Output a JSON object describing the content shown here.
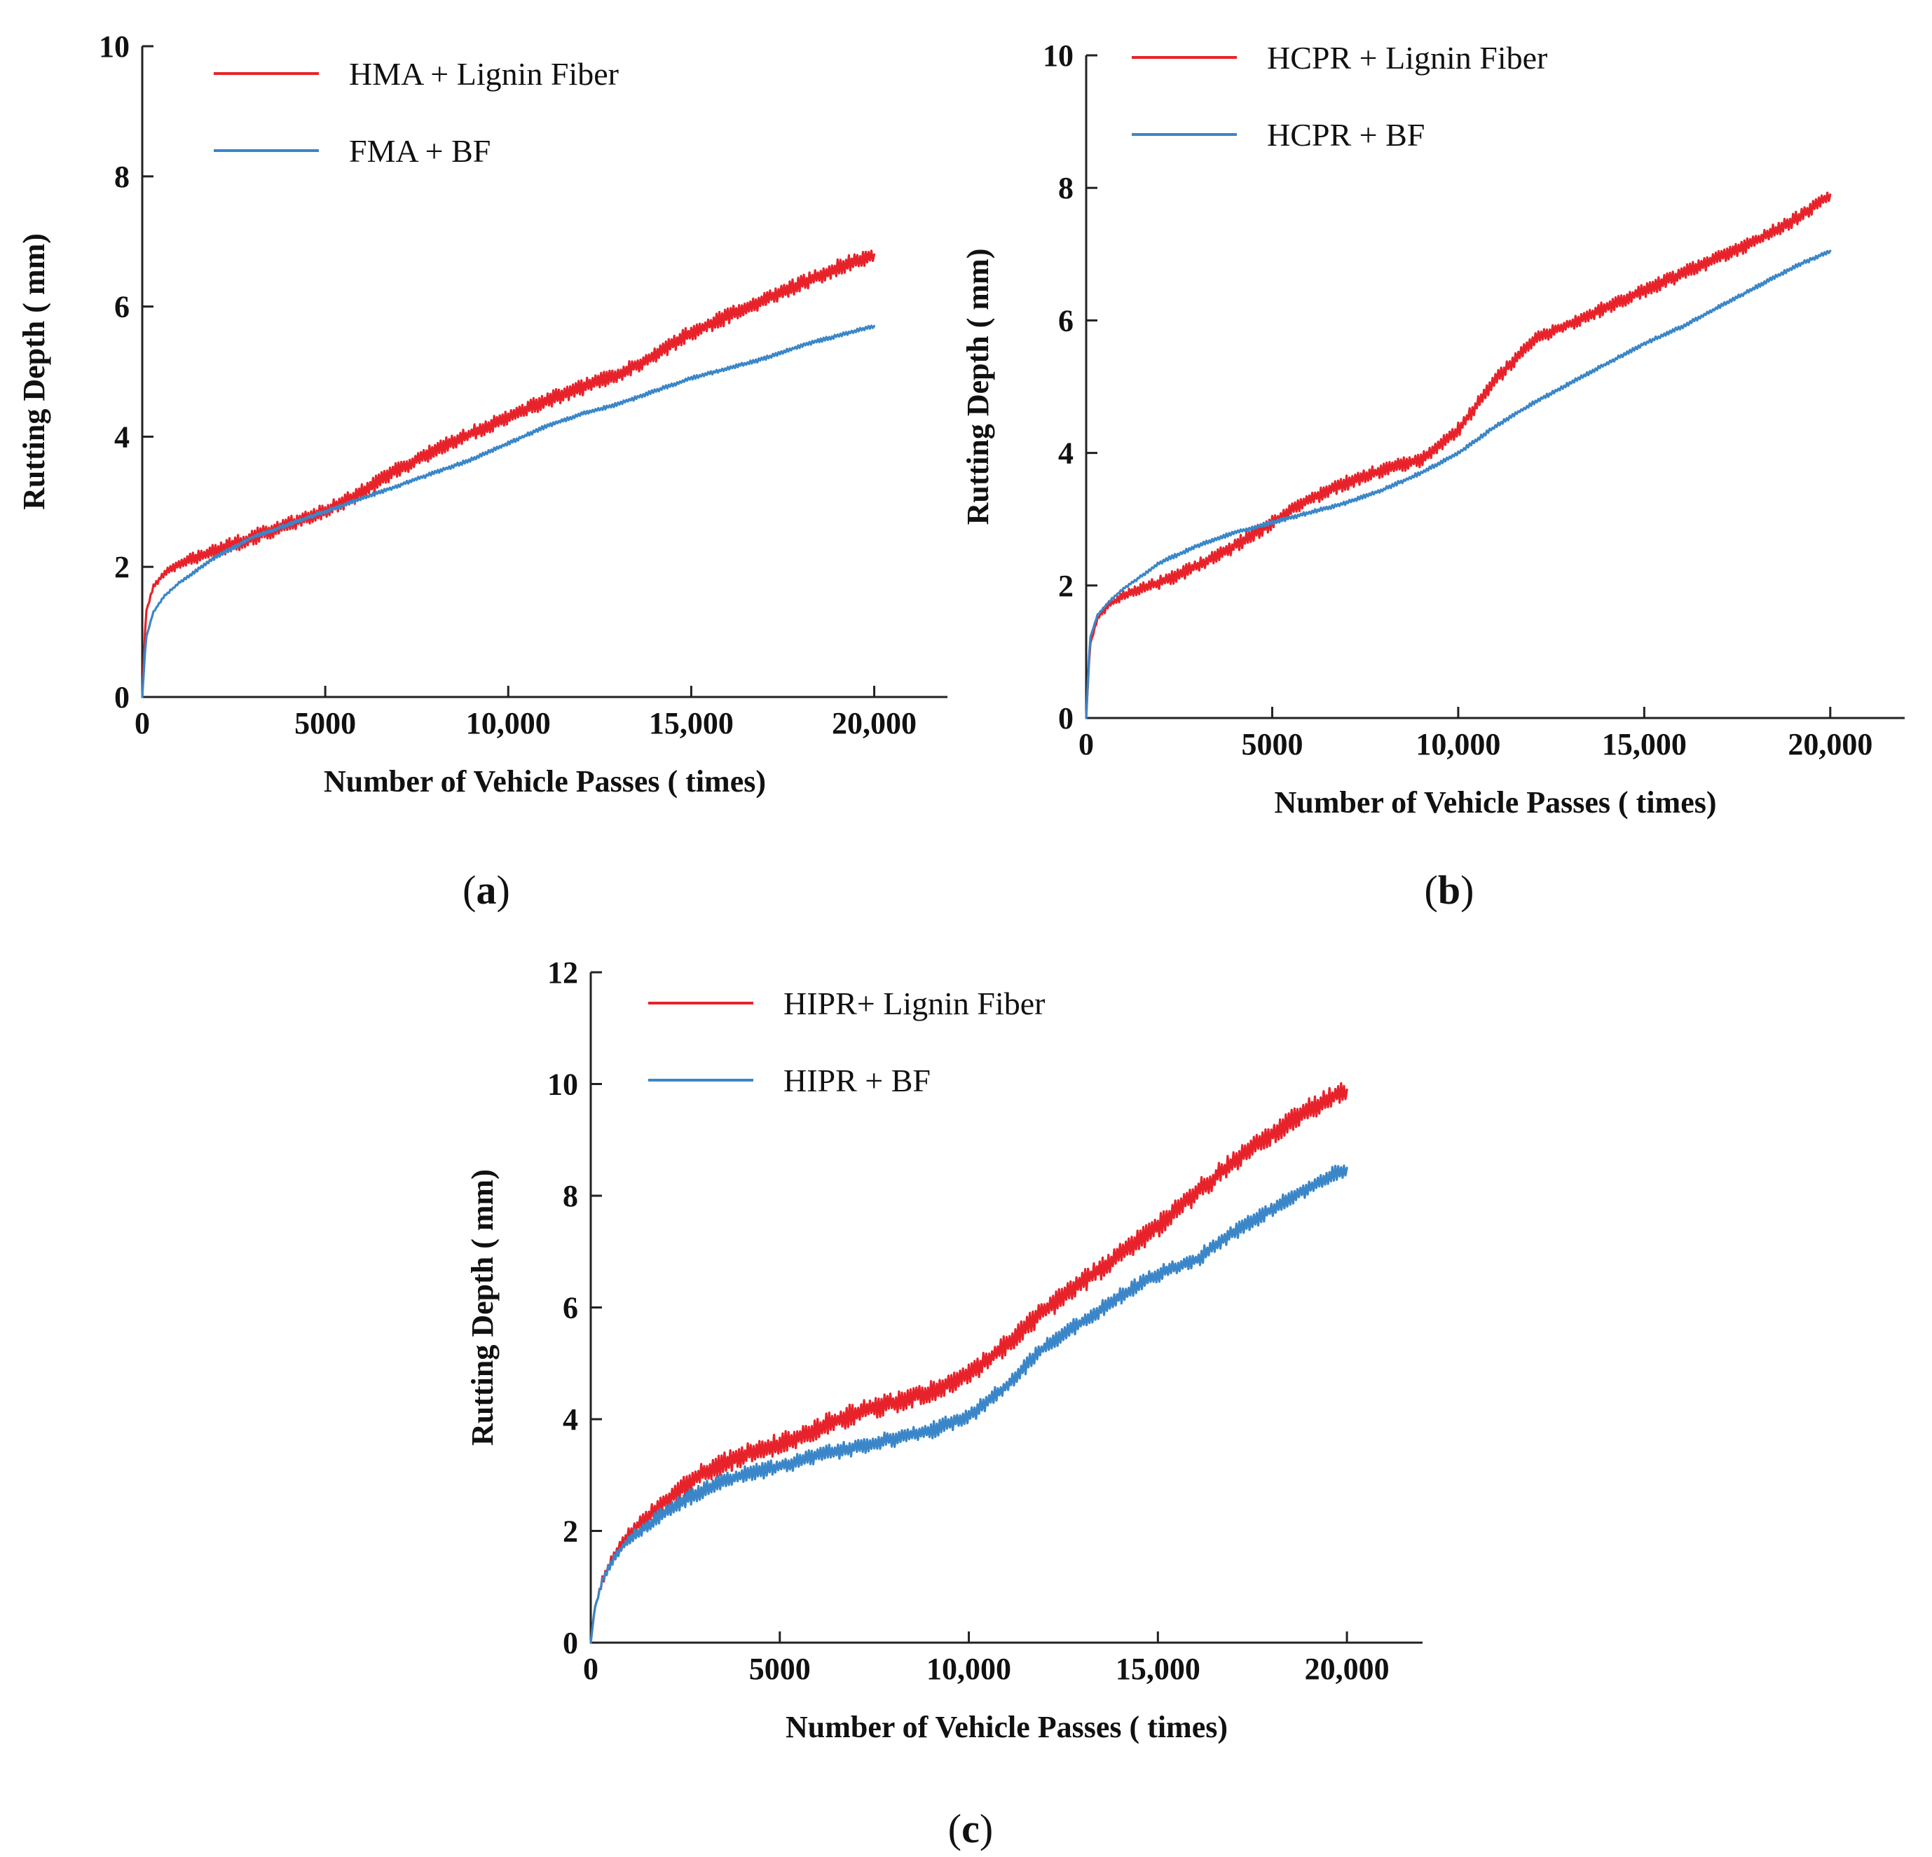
{
  "chart_data": [
    {
      "type": "line",
      "panel": "(a)",
      "panel_letter": "a",
      "xlabel": "Number of Vehicle Passes ( times)",
      "ylabel": "Rutting Depth ( mm)",
      "xlim": [
        0,
        22000
      ],
      "ylim": [
        0,
        10
      ],
      "xticks": [
        0,
        5000,
        10000,
        15000,
        20000
      ],
      "xtick_labels": [
        "0",
        "5000",
        "10,000",
        "15,000",
        "20,000"
      ],
      "yticks": [
        0,
        2,
        4,
        6,
        8,
        10
      ],
      "ytick_labels": [
        "0",
        "2",
        "4",
        "6",
        "8",
        "10"
      ],
      "legend_position": "top-left",
      "series": [
        {
          "name": "HMA + Lignin Fiber",
          "color": "#e8222a",
          "noise": 0.25,
          "x": [
            0,
            100,
            300,
            600,
            1000,
            2000,
            3000,
            4000,
            5000,
            6000,
            7000,
            8000,
            9000,
            10000,
            11000,
            12000,
            13000,
            14000,
            15000,
            16000,
            17000,
            18000,
            19000,
            20000
          ],
          "y": [
            0,
            1.3,
            1.7,
            1.9,
            2.05,
            2.25,
            2.45,
            2.65,
            2.85,
            3.15,
            3.5,
            3.8,
            4.05,
            4.3,
            4.55,
            4.75,
            4.95,
            5.25,
            5.6,
            5.85,
            6.1,
            6.35,
            6.6,
            6.8
          ]
        },
        {
          "name": "FMA + BF",
          "color": "#3a86c8",
          "noise": 0.06,
          "x": [
            0,
            100,
            300,
            600,
            1000,
            2000,
            3000,
            4000,
            5000,
            6000,
            7000,
            8000,
            9000,
            10000,
            11000,
            12000,
            13000,
            14000,
            15000,
            16000,
            17000,
            18000,
            19000,
            20000
          ],
          "y": [
            0,
            0.9,
            1.3,
            1.55,
            1.75,
            2.15,
            2.45,
            2.65,
            2.85,
            3.05,
            3.25,
            3.45,
            3.65,
            3.9,
            4.15,
            4.35,
            4.5,
            4.7,
            4.9,
            5.05,
            5.2,
            5.4,
            5.55,
            5.7
          ]
        }
      ]
    },
    {
      "type": "line",
      "panel": "(b)",
      "panel_letter": "b",
      "xlabel": "Number of Vehicle Passes ( times)",
      "ylabel": "Rutting Depth ( mm)",
      "xlim": [
        0,
        22000
      ],
      "ylim": [
        0,
        10
      ],
      "xticks": [
        0,
        5000,
        10000,
        15000,
        20000
      ],
      "xtick_labels": [
        "0",
        "5000",
        "10,000",
        "15,000",
        "20,000"
      ],
      "yticks": [
        0,
        2,
        4,
        6,
        8,
        10
      ],
      "ytick_labels": [
        "0",
        "2",
        "4",
        "6",
        "8",
        "10"
      ],
      "legend_position": "top-left",
      "series": [
        {
          "name": "HCPR + Lignin Fiber",
          "color": "#e8222a",
          "noise": 0.22,
          "x": [
            0,
            100,
            300,
            600,
            1000,
            2000,
            3000,
            4000,
            5000,
            6000,
            7000,
            8000,
            9000,
            10000,
            11000,
            12000,
            13000,
            14000,
            15000,
            16000,
            17000,
            18000,
            19000,
            20000
          ],
          "y": [
            0,
            1.1,
            1.5,
            1.7,
            1.85,
            2.05,
            2.3,
            2.6,
            2.95,
            3.3,
            3.55,
            3.75,
            3.9,
            4.35,
            5.1,
            5.7,
            5.95,
            6.2,
            6.45,
            6.7,
            6.95,
            7.2,
            7.5,
            7.9
          ]
        },
        {
          "name": "HCPR + BF",
          "color": "#3a86c8",
          "noise": 0.06,
          "x": [
            0,
            100,
            300,
            600,
            1000,
            2000,
            3000,
            4000,
            5000,
            6000,
            7000,
            8000,
            9000,
            10000,
            11000,
            12000,
            13000,
            14000,
            15000,
            16000,
            17000,
            18000,
            19000,
            20000
          ],
          "y": [
            0,
            1.2,
            1.55,
            1.75,
            1.95,
            2.35,
            2.6,
            2.8,
            2.95,
            3.1,
            3.25,
            3.45,
            3.7,
            4.0,
            4.4,
            4.75,
            5.05,
            5.35,
            5.65,
            5.9,
            6.2,
            6.5,
            6.8,
            7.05
          ]
        }
      ]
    },
    {
      "type": "line",
      "panel": "(c)",
      "panel_letter": "c",
      "xlabel": "Number of Vehicle Passes ( times)",
      "ylabel": "Rutting Depth ( mm)",
      "xlim": [
        0,
        22000
      ],
      "ylim": [
        0,
        12
      ],
      "xticks": [
        0,
        5000,
        10000,
        15000,
        20000
      ],
      "xtick_labels": [
        "0",
        "5000",
        "10,000",
        "15,000",
        "20,000"
      ],
      "yticks": [
        0,
        2,
        4,
        6,
        8,
        10,
        12
      ],
      "ytick_labels": [
        "0",
        "2",
        "4",
        "6",
        "8",
        "10",
        "12"
      ],
      "legend_position": "top-left",
      "series": [
        {
          "name": "HIPR+ Lignin Fiber",
          "color": "#e8222a",
          "noise": 0.4,
          "x": [
            0,
            100,
            300,
            600,
            1000,
            2000,
            3000,
            4000,
            5000,
            6000,
            7000,
            8000,
            9000,
            10000,
            11000,
            12000,
            13000,
            14000,
            15000,
            16000,
            17000,
            18000,
            19000,
            20000
          ],
          "y": [
            0,
            0.6,
            1.1,
            1.55,
            1.95,
            2.55,
            3.05,
            3.35,
            3.55,
            3.85,
            4.1,
            4.3,
            4.5,
            4.8,
            5.35,
            5.95,
            6.45,
            6.95,
            7.45,
            8.05,
            8.6,
            9.1,
            9.55,
            9.9
          ]
        },
        {
          "name": "HIPR + BF",
          "color": "#3a86c8",
          "noise": 0.3,
          "x": [
            0,
            100,
            300,
            600,
            1000,
            2000,
            3000,
            4000,
            5000,
            6000,
            7000,
            8000,
            9000,
            10000,
            11000,
            12000,
            13000,
            14000,
            15000,
            16000,
            17000,
            18000,
            19000,
            20000
          ],
          "y": [
            0,
            0.6,
            1.1,
            1.5,
            1.85,
            2.35,
            2.75,
            3.0,
            3.15,
            3.35,
            3.5,
            3.65,
            3.8,
            4.05,
            4.6,
            5.3,
            5.75,
            6.2,
            6.6,
            6.85,
            7.35,
            7.75,
            8.15,
            8.5
          ]
        }
      ]
    }
  ]
}
